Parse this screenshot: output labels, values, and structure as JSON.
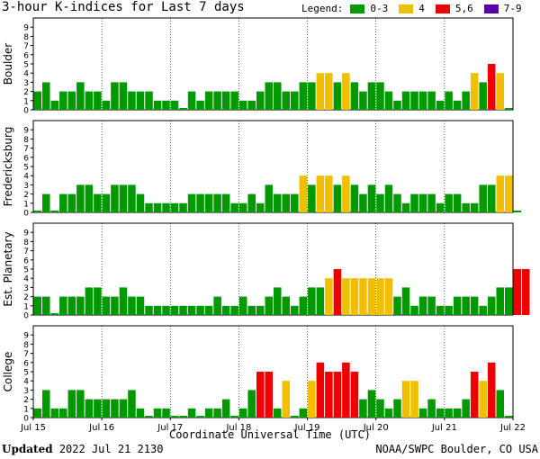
{
  "title": "3-hour K-indices for Last 7 days",
  "legend": {
    "label": "Legend:",
    "items": [
      {
        "label": "0-3",
        "color": "#009900"
      },
      {
        "label": "4",
        "color": "#f0c000"
      },
      {
        "label": "5,6",
        "color": "#ee0000"
      },
      {
        "label": "7-9",
        "color": "#5a00a8"
      }
    ]
  },
  "footer": {
    "xaxis_title": "Coordinate Universal Time (UTC)",
    "updated_label": "Updated",
    "updated_value": "2022 Jul 21 2130",
    "credit": "NOAA/SWPC Boulder, CO USA"
  },
  "chart_data": {
    "type": "bar",
    "title": "3-hour K-indices for Last 7 days",
    "xlabel": "Coordinate Universal Time (UTC)",
    "x_tick_labels": [
      "Jul 15",
      "Jul 16",
      "Jul 17",
      "Jul 18",
      "Jul 19",
      "Jul 20",
      "Jul 21",
      "Jul 22"
    ],
    "y_tick_labels": [
      "0",
      "1",
      "2",
      "3",
      "4",
      "5",
      "6",
      "7",
      "8",
      "9"
    ],
    "ylim": [
      0,
      9
    ],
    "bars_per_day": 8,
    "series": [
      {
        "name": "Boulder",
        "values": [
          2,
          3,
          1,
          2,
          2,
          3,
          2,
          2,
          1,
          3,
          3,
          2,
          2,
          2,
          1,
          1,
          1,
          0,
          2,
          1,
          2,
          2,
          2,
          2,
          1,
          1,
          2,
          3,
          3,
          2,
          2,
          3,
          3,
          4,
          4,
          3,
          4,
          3,
          2,
          3,
          3,
          2,
          1,
          2,
          2,
          2,
          2,
          1,
          2,
          1,
          2,
          4,
          3,
          5,
          4,
          0
        ]
      },
      {
        "name": "Fredericksburg",
        "values": [
          0,
          2,
          0,
          2,
          2,
          3,
          3,
          2,
          2,
          3,
          3,
          3,
          2,
          1,
          1,
          1,
          1,
          1,
          2,
          2,
          2,
          2,
          2,
          1,
          1,
          2,
          1,
          3,
          2,
          2,
          2,
          4,
          3,
          4,
          4,
          3,
          4,
          3,
          2,
          3,
          2,
          3,
          2,
          1,
          2,
          2,
          2,
          1,
          2,
          2,
          1,
          1,
          3,
          3,
          4,
          4,
          0
        ]
      },
      {
        "name": "Est. Planetary",
        "values": [
          2,
          2,
          0,
          2,
          2,
          2,
          3,
          3,
          2,
          2,
          3,
          2,
          2,
          1,
          1,
          1,
          1,
          1,
          1,
          1,
          1,
          2,
          1,
          1,
          2,
          1,
          1,
          2,
          3,
          2,
          1,
          2,
          3,
          3,
          4,
          5,
          4,
          4,
          4,
          4,
          4,
          4,
          2,
          3,
          1,
          2,
          2,
          1,
          1,
          2,
          2,
          2,
          1,
          2,
          3,
          3,
          5,
          5
        ]
      },
      {
        "name": "College",
        "values": [
          1,
          3,
          1,
          1,
          3,
          3,
          2,
          2,
          2,
          2,
          2,
          3,
          1,
          0,
          1,
          1,
          0,
          0,
          1,
          0,
          1,
          1,
          2,
          0,
          1,
          3,
          5,
          5,
          1,
          4,
          0,
          1,
          4,
          6,
          5,
          5,
          6,
          5,
          2,
          3,
          2,
          1,
          2,
          4,
          4,
          1,
          2,
          1,
          1,
          1,
          2,
          5,
          4,
          6,
          3,
          0
        ]
      }
    ]
  }
}
